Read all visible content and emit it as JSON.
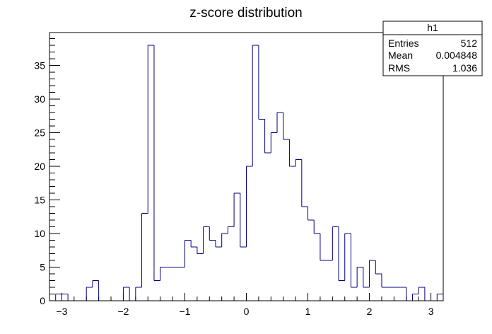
{
  "chart_data": {
    "type": "bar",
    "title": "z-score distribution",
    "xlabel": "",
    "ylabel": "",
    "xlim": [
      -3.2,
      3.2
    ],
    "ylim": [
      0,
      39.9
    ],
    "bin_width": 0.1,
    "x_bin_start": -3.2,
    "counts": [
      0,
      1,
      1,
      0,
      0,
      0,
      2,
      3,
      0,
      0,
      0,
      0,
      2,
      0,
      2,
      13,
      38,
      3,
      5,
      5,
      5,
      5,
      9,
      8,
      7,
      11,
      9,
      8,
      10,
      11,
      16,
      8,
      20,
      38,
      27,
      22,
      25,
      28,
      24,
      20,
      21,
      14,
      12,
      10,
      6,
      6,
      11,
      3,
      10,
      2,
      5,
      2,
      6,
      4,
      2,
      2,
      2,
      2,
      0,
      1,
      2,
      0,
      0,
      1
    ],
    "x_ticks": [
      -3,
      -2,
      -1,
      0,
      1,
      2,
      3
    ],
    "x_tick_labels": [
      "−3",
      "−2",
      "−1",
      "0",
      "1",
      "2",
      "3"
    ],
    "y_ticks": [
      0,
      5,
      10,
      15,
      20,
      25,
      30,
      35
    ],
    "y_tick_labels": [
      "0",
      "5",
      "10",
      "15",
      "20",
      "25",
      "30",
      "35"
    ],
    "line_color": "#00007f",
    "grid": false,
    "legend": "none",
    "stats_box": {
      "position": "top-right",
      "name": "h1",
      "rows": [
        {
          "label": "Entries",
          "value": "512"
        },
        {
          "label": "Mean",
          "value": "0.004848"
        },
        {
          "label": "RMS",
          "value": "1.036"
        }
      ]
    }
  }
}
